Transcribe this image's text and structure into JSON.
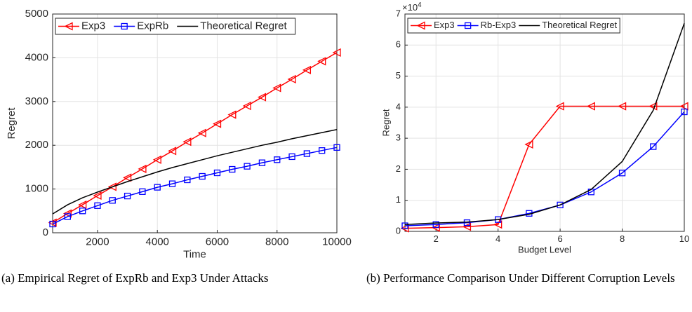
{
  "chart_data": [
    {
      "type": "line",
      "caption": "(a) Empirical Regret of ExpRb and Exp3 Under Attacks",
      "xlabel": "Time",
      "ylabel": "Regret",
      "x": [
        500,
        1000,
        1500,
        2000,
        2500,
        3000,
        3500,
        4000,
        4500,
        5000,
        5500,
        6000,
        6500,
        7000,
        7500,
        8000,
        8500,
        9000,
        9500,
        10000
      ],
      "xlim": [
        500,
        10000
      ],
      "xticks": [
        2000,
        4000,
        6000,
        8000,
        10000
      ],
      "ylim": [
        0,
        5000
      ],
      "yticks": [
        0,
        1000,
        2000,
        3000,
        4000,
        5000
      ],
      "grid": true,
      "legend": "top",
      "series": [
        {
          "name": "Exp3",
          "color": "#ff0000",
          "marker": "triangle-left",
          "values": [
            230,
            440,
            640,
            850,
            1050,
            1260,
            1460,
            1670,
            1870,
            2080,
            2280,
            2490,
            2700,
            2900,
            3100,
            3310,
            3510,
            3720,
            3920,
            4120
          ]
        },
        {
          "name": "ExpRb",
          "color": "#0000ff",
          "marker": "square",
          "values": [
            200,
            370,
            500,
            620,
            740,
            840,
            940,
            1040,
            1120,
            1210,
            1290,
            1370,
            1450,
            1520,
            1600,
            1670,
            1740,
            1810,
            1880,
            1950
          ]
        },
        {
          "name": "Theoretical Regret",
          "color": "#000000",
          "marker": "none",
          "values": [
            430,
            640,
            800,
            930,
            1050,
            1170,
            1280,
            1390,
            1490,
            1580,
            1670,
            1760,
            1840,
            1920,
            2000,
            2070,
            2150,
            2220,
            2290,
            2360
          ]
        }
      ]
    },
    {
      "type": "line",
      "caption": "(b) Performance Comparison Under Different Corruption Levels",
      "xlabel": "Budget Level",
      "ylabel": "Regret",
      "y_scale_label": "×10",
      "y_scale_exponent": 4,
      "x": [
        1,
        2,
        3,
        4,
        5,
        6,
        7,
        8,
        9,
        10
      ],
      "xlim": [
        1,
        10
      ],
      "xticks": [
        2,
        4,
        6,
        8,
        10
      ],
      "ylim": [
        0,
        7
      ],
      "yticks": [
        0,
        1,
        2,
        3,
        4,
        5,
        6,
        7
      ],
      "grid": true,
      "legend": "top",
      "series": [
        {
          "name": "Exp3",
          "color": "#ff0000",
          "marker": "triangle-left",
          "values": [
            0.1,
            0.12,
            0.15,
            0.22,
            2.8,
            4.03,
            4.03,
            4.03,
            4.03,
            4.03
          ]
        },
        {
          "name": "Rb-Exp3",
          "color": "#0000ff",
          "marker": "square",
          "values": [
            0.18,
            0.22,
            0.28,
            0.38,
            0.58,
            0.85,
            1.27,
            1.88,
            2.73,
            3.85
          ]
        },
        {
          "name": "Theoretical Regret",
          "color": "#000000",
          "marker": "none",
          "values": [
            0.22,
            0.27,
            0.3,
            0.38,
            0.55,
            0.85,
            1.35,
            2.25,
            3.9,
            6.7
          ]
        }
      ]
    }
  ]
}
